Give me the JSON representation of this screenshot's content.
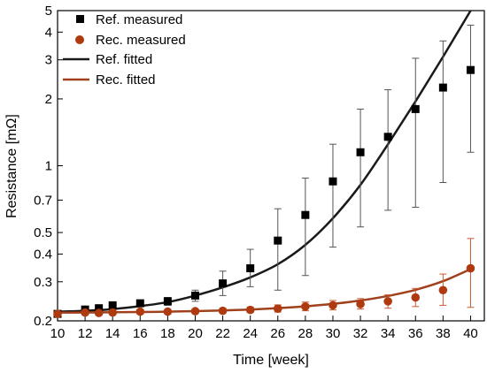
{
  "chart_data": {
    "type": "scatter",
    "xlabel": "Time [week]",
    "ylabel": "Resistance [mΩ]",
    "xlim": [
      10,
      41
    ],
    "ylim": [
      0.2,
      5
    ],
    "y_scale": "log",
    "x_ticks": [
      10,
      12,
      14,
      16,
      18,
      20,
      22,
      24,
      26,
      28,
      30,
      32,
      34,
      36,
      38,
      40
    ],
    "y_ticks": [
      {
        "value": 0.2,
        "label": "0.2"
      },
      {
        "value": 0.3,
        "label": "0.3"
      },
      {
        "value": 0.4,
        "label": "0.4"
      },
      {
        "value": 0.5,
        "label": "0.5"
      },
      {
        "value": 0.7,
        "label": "0.7"
      },
      {
        "value": 1,
        "label": "1"
      },
      {
        "value": 2,
        "label": "2"
      },
      {
        "value": 3,
        "label": "3"
      },
      {
        "value": 4,
        "label": "4"
      },
      {
        "value": 5,
        "label": "5"
      }
    ],
    "grid": false,
    "legend_position": "top-left",
    "series": [
      {
        "name": "Ref. measured",
        "kind": "points",
        "marker": "square",
        "color": "#000000",
        "x": [
          10,
          12,
          13,
          14,
          16,
          18,
          20,
          22,
          24,
          26,
          28,
          30,
          32,
          34,
          36,
          38,
          40
        ],
        "y": [
          0.215,
          0.225,
          0.228,
          0.235,
          0.24,
          0.245,
          0.26,
          0.295,
          0.345,
          0.46,
          0.6,
          0.85,
          1.15,
          1.35,
          1.8,
          2.25,
          2.7
        ],
        "err_low": [
          0.21,
          0.218,
          0.222,
          0.228,
          0.232,
          0.235,
          0.245,
          0.26,
          0.285,
          0.275,
          0.32,
          0.43,
          0.53,
          0.63,
          0.65,
          0.84,
          1.15
        ],
        "err_high": [
          0.22,
          0.232,
          0.236,
          0.242,
          0.248,
          0.255,
          0.275,
          0.335,
          0.42,
          0.64,
          0.88,
          1.25,
          1.8,
          2.2,
          3.05,
          3.65,
          4.3
        ]
      },
      {
        "name": "Rec. measured",
        "kind": "points",
        "marker": "circle",
        "color": "#b03a10",
        "x": [
          10,
          12,
          13,
          14,
          16,
          18,
          20,
          22,
          24,
          26,
          28,
          30,
          32,
          34,
          36,
          38,
          40
        ],
        "y": [
          0.215,
          0.218,
          0.217,
          0.218,
          0.22,
          0.22,
          0.221,
          0.222,
          0.224,
          0.227,
          0.232,
          0.235,
          0.238,
          0.245,
          0.255,
          0.275,
          0.345
        ],
        "err_low": [
          0.21,
          0.213,
          0.213,
          0.213,
          0.215,
          0.215,
          0.216,
          0.217,
          0.218,
          0.219,
          0.222,
          0.224,
          0.226,
          0.228,
          0.232,
          0.235,
          0.23
        ],
        "err_high": [
          0.22,
          0.223,
          0.222,
          0.223,
          0.225,
          0.225,
          0.226,
          0.228,
          0.231,
          0.236,
          0.243,
          0.247,
          0.252,
          0.262,
          0.28,
          0.325,
          0.47
        ]
      },
      {
        "name": "Ref. fitted",
        "kind": "line",
        "color": "#1a1a1a",
        "x": [
          10,
          12,
          14,
          16,
          18,
          20,
          22,
          24,
          26,
          28,
          30,
          32,
          34,
          36,
          38,
          40
        ],
        "y": [
          0.22,
          0.222,
          0.226,
          0.233,
          0.243,
          0.26,
          0.283,
          0.314,
          0.36,
          0.44,
          0.58,
          0.82,
          1.25,
          1.95,
          3.1,
          5.0
        ]
      },
      {
        "name": "Rec. fitted",
        "kind": "line",
        "color": "#a0401c",
        "x": [
          10,
          12,
          14,
          16,
          18,
          20,
          22,
          24,
          26,
          28,
          30,
          32,
          34,
          36,
          38,
          40
        ],
        "y": [
          0.218,
          0.2182,
          0.2186,
          0.2192,
          0.22,
          0.2212,
          0.2228,
          0.225,
          0.2282,
          0.2325,
          0.2385,
          0.247,
          0.259,
          0.276,
          0.302,
          0.342
        ]
      }
    ]
  }
}
